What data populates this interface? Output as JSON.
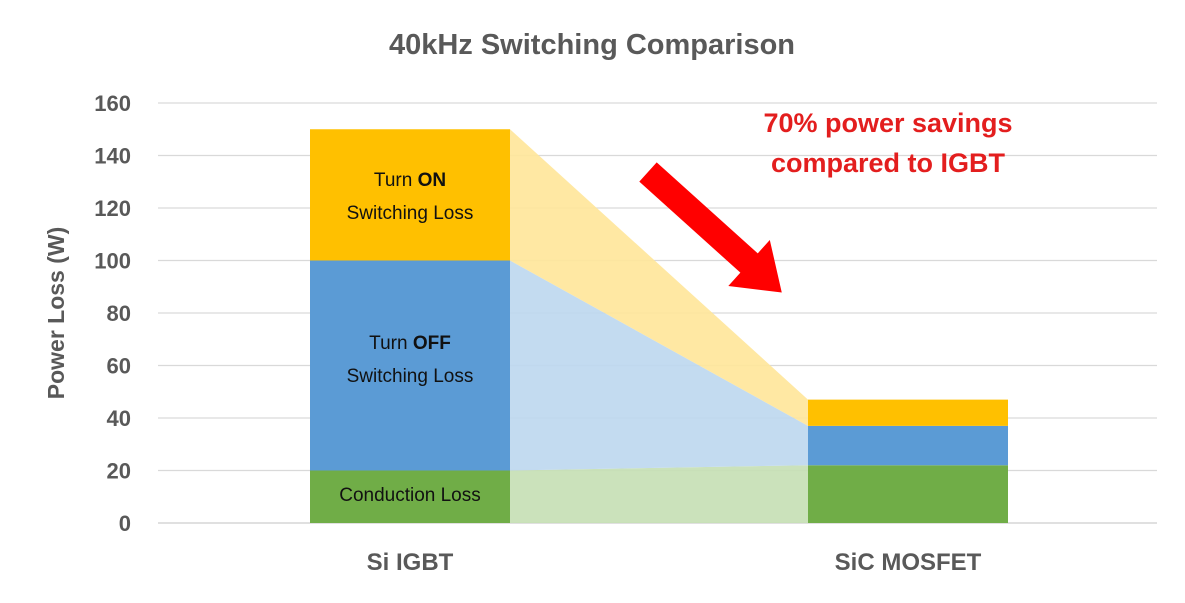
{
  "chart_data": {
    "type": "bar",
    "stacked": true,
    "title": "40kHz Switching Comparison",
    "xlabel": "",
    "ylabel": "Power Loss (W)",
    "ylim": [
      0,
      160
    ],
    "yticks": [
      0,
      20,
      40,
      60,
      80,
      100,
      120,
      140,
      160
    ],
    "grid": true,
    "categories": [
      "Si IGBT",
      "SiC MOSFET"
    ],
    "series": [
      {
        "name": "Conduction Loss",
        "values": [
          20,
          22
        ],
        "color": "#70AD47",
        "band_color": "#C5DFB4"
      },
      {
        "name": "Turn OFF Switching Loss",
        "values": [
          80,
          15
        ],
        "color": "#5B9BD5",
        "band_color": "#BDD7EE"
      },
      {
        "name": "Turn ON Switching Loss",
        "values": [
          50,
          10
        ],
        "color": "#FFC000",
        "band_color": "#FFE699"
      }
    ],
    "segment_labels": [
      {
        "parts": [
          {
            "text": "Turn ",
            "bold": false
          },
          {
            "text": "ON",
            "bold": true
          }
        ],
        "line2": "Switching Loss"
      },
      {
        "parts": [
          {
            "text": "Turn ",
            "bold": false
          },
          {
            "text": "OFF",
            "bold": true
          }
        ],
        "line2": "Switching Loss"
      },
      {
        "text": "Conduction  Loss"
      }
    ],
    "annotation": {
      "lines": [
        "70% power savings",
        "compared to IGBT"
      ],
      "color": "#E31E1E",
      "arrow": "red-down-right-arrow"
    }
  },
  "colors": {
    "title": "#595959",
    "axis_text": "#595959",
    "grid": "#D9D9D9"
  }
}
